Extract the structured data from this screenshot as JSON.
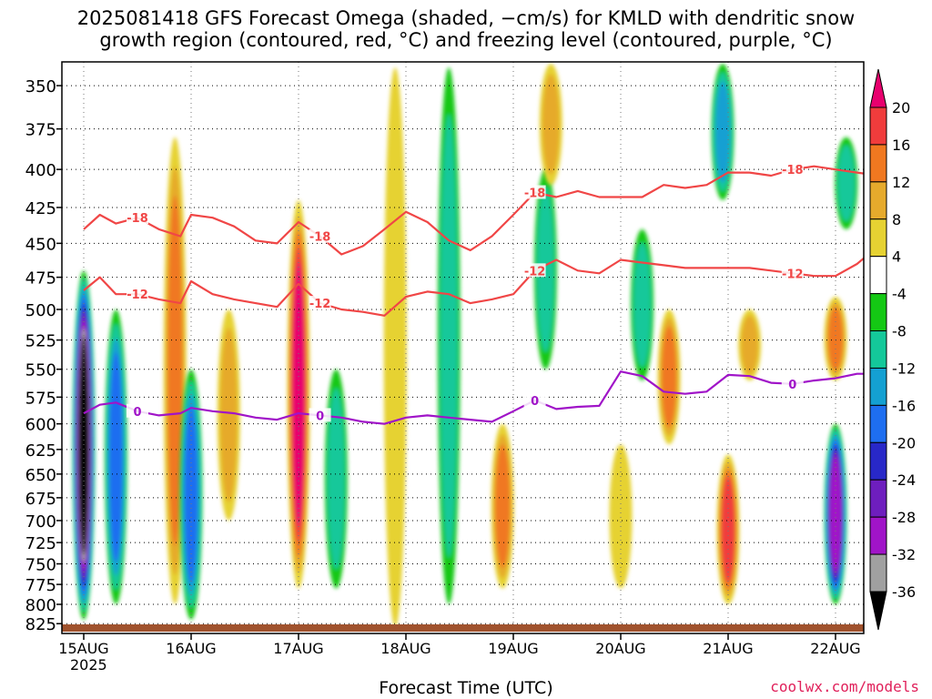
{
  "chart_data": {
    "type": "heatmap",
    "title": "2025081418 GFS Forecast Omega (shaded, −cm/s) for KMLD with dendritic snow",
    "subtitle": "growth region (contoured, red, °C) and freezing level (contoured, purple, °C)",
    "xlabel": "Forecast Time (UTC)",
    "x_ticks": [
      "15AUG",
      "16AUG",
      "17AUG",
      "18AUG",
      "19AUG",
      "20AUG",
      "21AUG",
      "22AUG"
    ],
    "x_year_label": "2025",
    "y_ticks": [
      350,
      375,
      400,
      425,
      450,
      475,
      500,
      525,
      550,
      575,
      600,
      625,
      650,
      675,
      700,
      725,
      750,
      775,
      800,
      825
    ],
    "ylim": [
      337,
      838
    ],
    "y_scale": "log",
    "grid": true,
    "colorbar": {
      "ticks": [
        20,
        16,
        12,
        8,
        4,
        -4,
        -8,
        -12,
        -16,
        -20,
        -24,
        -28,
        -32,
        -36
      ],
      "colors": [
        "#e8006e",
        "#f03c3c",
        "#f07820",
        "#e6aa2c",
        "#e6d232",
        "#ffffff",
        "#14c814",
        "#14c89a",
        "#14a0d2",
        "#1e6ef0",
        "#2828c8",
        "#6e1ebe",
        "#a014c8",
        "#a0a0a0",
        "#000000"
      ]
    },
    "dgz_minus18": {
      "color": "#f04646",
      "label": "-18",
      "x_day": [
        15.0,
        15.15,
        15.3,
        15.5,
        15.7,
        15.9,
        16.0,
        16.2,
        16.4,
        16.6,
        16.8,
        17.0,
        17.2,
        17.4,
        17.6,
        17.8,
        18.0,
        18.2,
        18.4,
        18.6,
        18.8,
        19.0,
        19.2,
        19.4,
        19.6,
        19.8,
        20.0,
        20.2,
        20.4,
        20.6,
        20.8,
        21.0,
        21.2,
        21.4,
        21.6,
        21.8,
        22.0,
        22.2,
        22.4
      ],
      "p_mb": [
        440,
        430,
        436,
        432,
        440,
        445,
        430,
        432,
        438,
        448,
        450,
        435,
        445,
        458,
        452,
        440,
        428,
        435,
        448,
        455,
        445,
        430,
        415,
        418,
        414,
        418,
        418,
        418,
        410,
        412,
        410,
        402,
        402,
        404,
        400,
        398,
        400,
        402,
        404
      ]
    },
    "dgz_minus12": {
      "color": "#f04646",
      "label": "-12",
      "x_day": [
        15.0,
        15.15,
        15.3,
        15.5,
        15.7,
        15.9,
        16.0,
        16.2,
        16.4,
        16.6,
        16.8,
        17.0,
        17.2,
        17.4,
        17.6,
        17.8,
        18.0,
        18.2,
        18.4,
        18.6,
        18.8,
        19.0,
        19.2,
        19.4,
        19.6,
        19.8,
        20.0,
        20.2,
        20.4,
        20.6,
        20.8,
        21.0,
        21.2,
        21.4,
        21.6,
        21.8,
        22.0,
        22.2,
        22.4
      ],
      "p_mb": [
        485,
        475,
        488,
        488,
        492,
        495,
        478,
        488,
        492,
        495,
        498,
        480,
        495,
        500,
        502,
        505,
        490,
        486,
        488,
        495,
        492,
        488,
        470,
        462,
        470,
        472,
        462,
        464,
        466,
        468,
        468,
        468,
        468,
        470,
        472,
        474,
        474,
        465,
        452
      ]
    },
    "freezing_level": {
      "color": "#a014c8",
      "label": "0",
      "x_day": [
        15.0,
        15.15,
        15.3,
        15.5,
        15.7,
        15.9,
        16.0,
        16.2,
        16.4,
        16.6,
        16.8,
        17.0,
        17.2,
        17.4,
        17.6,
        17.8,
        18.0,
        18.2,
        18.4,
        18.6,
        18.8,
        19.0,
        19.2,
        19.4,
        19.6,
        19.8,
        20.0,
        20.2,
        20.4,
        20.6,
        20.8,
        21.0,
        21.2,
        21.4,
        21.6,
        21.8,
        22.0,
        22.2,
        22.4
      ],
      "p_mb": [
        590,
        582,
        580,
        588,
        592,
        590,
        585,
        588,
        590,
        594,
        596,
        590,
        592,
        594,
        598,
        600,
        594,
        592,
        594,
        596,
        598,
        588,
        578,
        586,
        584,
        583,
        552,
        556,
        570,
        572,
        570,
        555,
        556,
        562,
        563,
        560,
        558,
        554,
        554
      ]
    },
    "omega_features": [
      {
        "x_day": 15.0,
        "p_top": 470,
        "p_bot": 820,
        "value": -36
      },
      {
        "x_day": 15.3,
        "p_top": 500,
        "p_bot": 800,
        "value": -16
      },
      {
        "x_day": 15.85,
        "p_top": 380,
        "p_bot": 800,
        "value": 12
      },
      {
        "x_day": 16.0,
        "p_top": 550,
        "p_bot": 820,
        "value": -16
      },
      {
        "x_day": 16.35,
        "p_top": 500,
        "p_bot": 700,
        "value": 8
      },
      {
        "x_day": 17.0,
        "p_top": 420,
        "p_bot": 780,
        "value": 20
      },
      {
        "x_day": 17.35,
        "p_top": 550,
        "p_bot": 780,
        "value": -8
      },
      {
        "x_day": 17.9,
        "p_top": 340,
        "p_bot": 830,
        "value": 4
      },
      {
        "x_day": 18.4,
        "p_top": 340,
        "p_bot": 800,
        "value": -8
      },
      {
        "x_day": 18.9,
        "p_top": 600,
        "p_bot": 780,
        "value": 12
      },
      {
        "x_day": 19.3,
        "p_top": 400,
        "p_bot": 550,
        "value": -8
      },
      {
        "x_day": 19.35,
        "p_top": 338,
        "p_bot": 410,
        "value": 8
      },
      {
        "x_day": 20.0,
        "p_top": 620,
        "p_bot": 780,
        "value": 4
      },
      {
        "x_day": 20.2,
        "p_top": 440,
        "p_bot": 560,
        "value": -8
      },
      {
        "x_day": 20.45,
        "p_top": 500,
        "p_bot": 620,
        "value": 12
      },
      {
        "x_day": 21.0,
        "p_top": 630,
        "p_bot": 800,
        "value": 16
      },
      {
        "x_day": 20.95,
        "p_top": 338,
        "p_bot": 420,
        "value": -12
      },
      {
        "x_day": 21.2,
        "p_top": 500,
        "p_bot": 560,
        "value": 8
      },
      {
        "x_day": 22.0,
        "p_top": 600,
        "p_bot": 800,
        "value": -28
      },
      {
        "x_day": 22.1,
        "p_top": 380,
        "p_bot": 440,
        "value": -8
      },
      {
        "x_day": 22.0,
        "p_top": 490,
        "p_bot": 560,
        "value": 12
      }
    ]
  },
  "footer": {
    "credit": "coolwx.com/models"
  }
}
